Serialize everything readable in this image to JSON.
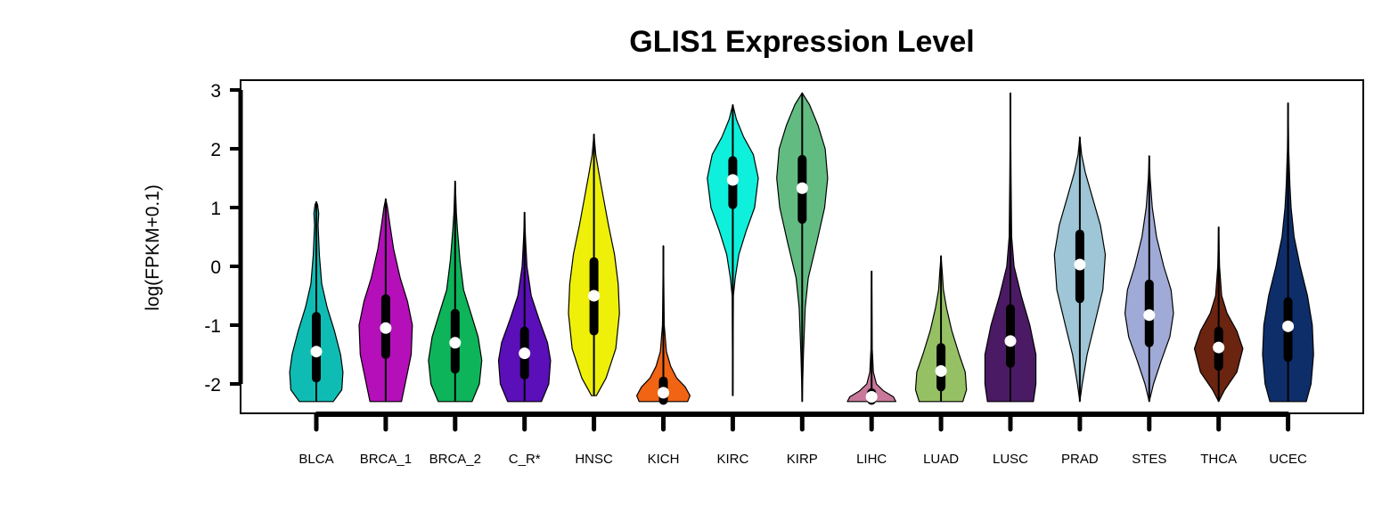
{
  "chart_data": {
    "type": "violin",
    "title": "GLIS1 Expression Level",
    "ylabel": "log(FPKM+0.1)",
    "xlabel": "",
    "ylim": [
      -2.5,
      3.0
    ],
    "yticks": [
      -2,
      -1,
      0,
      1,
      2,
      3
    ],
    "grid": false,
    "categories": [
      "BLCA",
      "BRCA_1",
      "BRCA_2",
      "C_R*",
      "HNSC",
      "KICH",
      "KIRC",
      "KIRP",
      "LIHC",
      "LUAD",
      "LUSC",
      "PRAD",
      "STES",
      "THCA",
      "UCEC"
    ],
    "colors": [
      "#0fbcb4",
      "#b40fb8",
      "#0db45a",
      "#5a0fb8",
      "#eef00a",
      "#f06414",
      "#0ff0dc",
      "#62bc82",
      "#c8789a",
      "#96c064",
      "#4a1a64",
      "#9ec6d6",
      "#a0aad6",
      "#6a2410",
      "#0e2e6a"
    ],
    "series": [
      {
        "name": "BLCA",
        "median": -1.45,
        "q1": -1.9,
        "q3": -0.85,
        "min": -2.3,
        "max": 1.1,
        "profile": [
          [
            -2.3,
            0.28
          ],
          [
            -2.1,
            0.42
          ],
          [
            -1.8,
            0.44
          ],
          [
            -1.5,
            0.4
          ],
          [
            -1.1,
            0.3
          ],
          [
            -0.7,
            0.18
          ],
          [
            -0.3,
            0.09
          ],
          [
            0.2,
            0.05
          ],
          [
            0.7,
            0.03
          ],
          [
            0.9,
            0.04
          ],
          [
            1.05,
            0.02
          ],
          [
            1.1,
            0.0
          ]
        ]
      },
      {
        "name": "BRCA_1",
        "median": -1.05,
        "q1": -1.5,
        "q3": -0.55,
        "min": -2.3,
        "max": 1.15,
        "profile": [
          [
            -2.3,
            0.26
          ],
          [
            -2.0,
            0.32
          ],
          [
            -1.5,
            0.42
          ],
          [
            -1.0,
            0.44
          ],
          [
            -0.6,
            0.36
          ],
          [
            -0.2,
            0.24
          ],
          [
            0.3,
            0.13
          ],
          [
            0.7,
            0.07
          ],
          [
            1.0,
            0.03
          ],
          [
            1.15,
            0.0
          ]
        ]
      },
      {
        "name": "BRCA_2",
        "median": -1.3,
        "q1": -1.75,
        "q3": -0.8,
        "min": -2.3,
        "max": 1.45,
        "profile": [
          [
            -2.3,
            0.28
          ],
          [
            -2.0,
            0.4
          ],
          [
            -1.6,
            0.44
          ],
          [
            -1.2,
            0.38
          ],
          [
            -0.8,
            0.26
          ],
          [
            -0.4,
            0.14
          ],
          [
            0.1,
            0.08
          ],
          [
            0.6,
            0.04
          ],
          [
            0.9,
            0.02
          ],
          [
            1.2,
            0.01
          ],
          [
            1.45,
            0.0
          ]
        ]
      },
      {
        "name": "C_R*",
        "median": -1.48,
        "q1": -1.85,
        "q3": -1.1,
        "min": -2.3,
        "max": 0.92,
        "profile": [
          [
            -2.3,
            0.28
          ],
          [
            -2.0,
            0.4
          ],
          [
            -1.6,
            0.43
          ],
          [
            -1.3,
            0.38
          ],
          [
            -0.9,
            0.24
          ],
          [
            -0.5,
            0.11
          ],
          [
            0.0,
            0.04
          ],
          [
            0.5,
            0.015
          ],
          [
            0.92,
            0.0
          ]
        ]
      },
      {
        "name": "HNSC",
        "median": -0.5,
        "q1": -1.1,
        "q3": 0.08,
        "min": -2.2,
        "max": 2.25,
        "profile": [
          [
            -2.2,
            0.04
          ],
          [
            -1.9,
            0.2
          ],
          [
            -1.4,
            0.36
          ],
          [
            -0.8,
            0.42
          ],
          [
            -0.3,
            0.4
          ],
          [
            0.2,
            0.34
          ],
          [
            0.7,
            0.24
          ],
          [
            1.2,
            0.15
          ],
          [
            1.6,
            0.08
          ],
          [
            1.9,
            0.03
          ],
          [
            2.25,
            0.0
          ]
        ]
      },
      {
        "name": "KICH",
        "median": -2.15,
        "q1": -2.28,
        "q3": -1.95,
        "min": -2.3,
        "max": 0.35,
        "profile": [
          [
            -2.3,
            0.4
          ],
          [
            -2.2,
            0.44
          ],
          [
            -2.05,
            0.36
          ],
          [
            -1.9,
            0.22
          ],
          [
            -1.7,
            0.12
          ],
          [
            -1.45,
            0.05
          ],
          [
            -1.0,
            0.015
          ],
          [
            0.0,
            0.005
          ],
          [
            0.35,
            0.0
          ]
        ]
      },
      {
        "name": "KIRC",
        "median": 1.47,
        "q1": 1.05,
        "q3": 1.8,
        "min": -2.2,
        "max": 2.75,
        "profile": [
          [
            -2.2,
            0.0
          ],
          [
            -0.5,
            0.01
          ],
          [
            -0.2,
            0.04
          ],
          [
            0.2,
            0.1
          ],
          [
            0.6,
            0.22
          ],
          [
            1.0,
            0.36
          ],
          [
            1.5,
            0.42
          ],
          [
            1.9,
            0.34
          ],
          [
            2.2,
            0.18
          ],
          [
            2.5,
            0.06
          ],
          [
            2.75,
            0.0
          ]
        ]
      },
      {
        "name": "KIRP",
        "median": 1.33,
        "q1": 0.8,
        "q3": 1.82,
        "min": -2.3,
        "max": 2.95,
        "profile": [
          [
            -2.3,
            0.0
          ],
          [
            -1.5,
            0.02
          ],
          [
            -0.7,
            0.05
          ],
          [
            -0.2,
            0.1
          ],
          [
            0.4,
            0.24
          ],
          [
            1.0,
            0.37
          ],
          [
            1.5,
            0.42
          ],
          [
            2.0,
            0.38
          ],
          [
            2.4,
            0.26
          ],
          [
            2.75,
            0.12
          ],
          [
            2.95,
            0.0
          ]
        ]
      },
      {
        "name": "LIHC",
        "median": -2.22,
        "q1": -2.28,
        "q3": -2.15,
        "min": -2.3,
        "max": -0.08,
        "profile": [
          [
            -2.3,
            0.4
          ],
          [
            -2.22,
            0.36
          ],
          [
            -2.12,
            0.2
          ],
          [
            -2.0,
            0.08
          ],
          [
            -1.8,
            0.03
          ],
          [
            -1.4,
            0.01
          ],
          [
            -0.5,
            0.005
          ],
          [
            -0.08,
            0.0
          ]
        ]
      },
      {
        "name": "LUAD",
        "median": -1.78,
        "q1": -2.05,
        "q3": -1.38,
        "min": -2.3,
        "max": 0.18,
        "profile": [
          [
            -2.3,
            0.36
          ],
          [
            -2.1,
            0.42
          ],
          [
            -1.8,
            0.4
          ],
          [
            -1.5,
            0.3
          ],
          [
            -1.1,
            0.18
          ],
          [
            -0.7,
            0.09
          ],
          [
            -0.4,
            0.04
          ],
          [
            -0.1,
            0.02
          ],
          [
            0.18,
            0.0
          ]
        ]
      },
      {
        "name": "LUSC",
        "median": -1.27,
        "q1": -1.65,
        "q3": -0.72,
        "min": -2.3,
        "max": 2.95,
        "profile": [
          [
            -2.3,
            0.38
          ],
          [
            -2.0,
            0.42
          ],
          [
            -1.5,
            0.42
          ],
          [
            -1.0,
            0.32
          ],
          [
            -0.5,
            0.18
          ],
          [
            0.0,
            0.06
          ],
          [
            0.5,
            0.02
          ],
          [
            1.5,
            0.01
          ],
          [
            2.95,
            0.0
          ]
        ]
      },
      {
        "name": "PRAD",
        "median": 0.03,
        "q1": -0.55,
        "q3": 0.55,
        "min": -2.3,
        "max": 2.2,
        "profile": [
          [
            -2.3,
            0.0
          ],
          [
            -2.0,
            0.04
          ],
          [
            -1.5,
            0.12
          ],
          [
            -1.0,
            0.24
          ],
          [
            -0.4,
            0.38
          ],
          [
            0.2,
            0.42
          ],
          [
            0.7,
            0.34
          ],
          [
            1.2,
            0.2
          ],
          [
            1.6,
            0.09
          ],
          [
            1.9,
            0.03
          ],
          [
            2.2,
            0.0
          ]
        ]
      },
      {
        "name": "STES",
        "median": -0.83,
        "q1": -1.3,
        "q3": -0.3,
        "min": -2.3,
        "max": 1.88,
        "profile": [
          [
            -2.3,
            0.0
          ],
          [
            -2.0,
            0.07
          ],
          [
            -1.6,
            0.2
          ],
          [
            -1.2,
            0.34
          ],
          [
            -0.8,
            0.4
          ],
          [
            -0.4,
            0.36
          ],
          [
            0.0,
            0.24
          ],
          [
            0.5,
            0.12
          ],
          [
            1.0,
            0.05
          ],
          [
            1.5,
            0.015
          ],
          [
            1.88,
            0.0
          ]
        ]
      },
      {
        "name": "THCA",
        "median": -1.38,
        "q1": -1.7,
        "q3": -1.1,
        "min": -2.3,
        "max": 0.67,
        "profile": [
          [
            -2.3,
            0.0
          ],
          [
            -2.1,
            0.1
          ],
          [
            -1.8,
            0.3
          ],
          [
            -1.4,
            0.4
          ],
          [
            -1.1,
            0.3
          ],
          [
            -0.8,
            0.14
          ],
          [
            -0.5,
            0.05
          ],
          [
            0.0,
            0.015
          ],
          [
            0.67,
            0.0
          ]
        ]
      },
      {
        "name": "UCEC",
        "median": -1.02,
        "q1": -1.55,
        "q3": -0.6,
        "min": -2.3,
        "max": 2.78,
        "profile": [
          [
            -2.3,
            0.3
          ],
          [
            -2.0,
            0.38
          ],
          [
            -1.5,
            0.42
          ],
          [
            -1.0,
            0.4
          ],
          [
            -0.5,
            0.32
          ],
          [
            0.0,
            0.2
          ],
          [
            0.5,
            0.1
          ],
          [
            1.0,
            0.05
          ],
          [
            1.4,
            0.03
          ],
          [
            2.0,
            0.01
          ],
          [
            2.78,
            0.0
          ]
        ]
      }
    ]
  }
}
